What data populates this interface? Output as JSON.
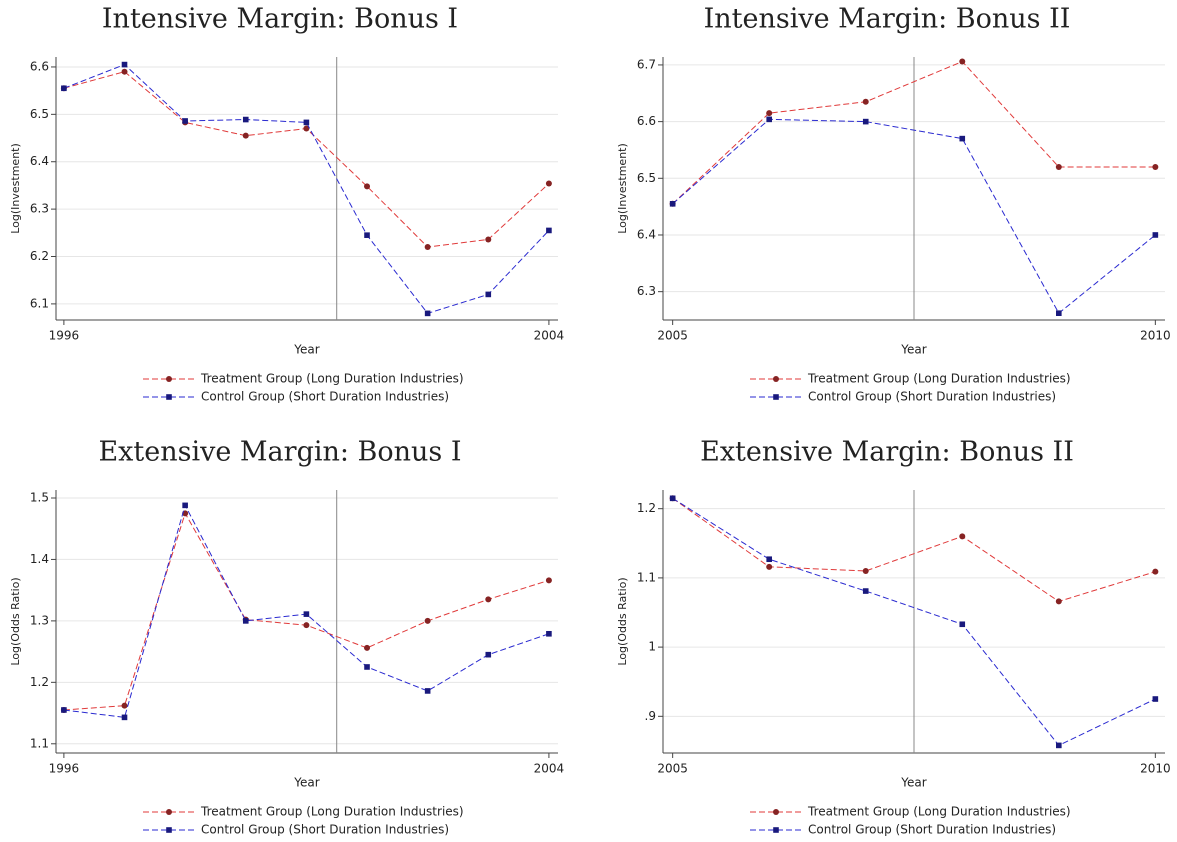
{
  "chart_data": [
    {
      "type": "line",
      "title": "Intensive Margin: Bonus I",
      "xlabel": "Year",
      "ylabel": "Log(Investment)",
      "x": [
        1996,
        1997,
        1998,
        1999,
        2000,
        2001,
        2002,
        2003,
        2004
      ],
      "xlim": [
        1995.87,
        2004.15
      ],
      "xticks": [
        1996,
        2004
      ],
      "ylim": [
        6.066,
        6.621
      ],
      "yticks": [
        6.1,
        6.2,
        6.3,
        6.4,
        6.5,
        6.6
      ],
      "grid": true,
      "vline": 2000.5,
      "series": [
        {
          "name": "Treatment Group (Long Duration Industries)",
          "color": "#e03a3a",
          "marker": "circle",
          "values": [
            6.555,
            6.59,
            6.483,
            6.455,
            6.47,
            6.348,
            6.22,
            6.236,
            6.354
          ]
        },
        {
          "name": "Control Group (Short Duration Industries)",
          "color": "#2a2ad0",
          "marker": "square",
          "values": [
            6.555,
            6.605,
            6.486,
            6.489,
            6.483,
            6.245,
            6.08,
            6.12,
            6.255
          ]
        }
      ]
    },
    {
      "type": "line",
      "title": "Intensive Margin: Bonus II",
      "xlabel": "Year",
      "ylabel": "Log(Investment)",
      "x": [
        2005,
        2006,
        2007,
        2008,
        2009,
        2010
      ],
      "xlim": [
        2004.9,
        2010.1
      ],
      "xticks": [
        2005,
        2010
      ],
      "ylim": [
        6.25,
        6.714
      ],
      "yticks": [
        6.3,
        6.4,
        6.5,
        6.6,
        6.7
      ],
      "grid": true,
      "vline": 2007.5,
      "series": [
        {
          "name": "Treatment Group (Long Duration Industries)",
          "color": "#e03a3a",
          "marker": "circle",
          "values": [
            6.455,
            6.615,
            6.635,
            6.706,
            6.52,
            6.52
          ]
        },
        {
          "name": "Control Group (Short Duration Industries)",
          "color": "#2a2ad0",
          "marker": "square",
          "values": [
            6.455,
            6.604,
            6.6,
            6.57,
            6.262,
            6.4
          ]
        }
      ]
    },
    {
      "type": "line",
      "title": "Extensive Margin: Bonus I",
      "xlabel": "Year",
      "ylabel": "Log(Odds Ratio)",
      "x": [
        1996,
        1997,
        1998,
        1999,
        2000,
        2001,
        2002,
        2003,
        2004
      ],
      "xlim": [
        1995.87,
        2004.15
      ],
      "xticks": [
        1996,
        2004
      ],
      "ylim": [
        1.085,
        1.513
      ],
      "yticks": [
        1.1,
        1.2,
        1.3,
        1.4,
        1.5
      ],
      "grid": true,
      "vline": 2000.5,
      "series": [
        {
          "name": "Treatment Group (Long Duration Industries)",
          "color": "#e03a3a",
          "marker": "circle",
          "values": [
            1.155,
            1.162,
            1.475,
            1.302,
            1.293,
            1.256,
            1.3,
            1.335,
            1.366
          ]
        },
        {
          "name": "Control Group (Short Duration Industries)",
          "color": "#2a2ad0",
          "marker": "square",
          "values": [
            1.155,
            1.143,
            1.488,
            1.3,
            1.311,
            1.225,
            1.186,
            1.245,
            1.279
          ]
        }
      ]
    },
    {
      "type": "line",
      "title": "Extensive Margin: Bonus II",
      "xlabel": "Year",
      "ylabel": "Log(Odds Ratio)",
      "x": [
        2005,
        2006,
        2007,
        2008,
        2009,
        2010
      ],
      "xlim": [
        2004.9,
        2010.1
      ],
      "xticks": [
        2005,
        2010
      ],
      "ylim": [
        0.847,
        1.227
      ],
      "yticks": [
        {
          "value": 0.9,
          "label": ".9"
        },
        1,
        1.1,
        1.2
      ],
      "grid": true,
      "vline": 2007.5,
      "series": [
        {
          "name": "Treatment Group (Long Duration Industries)",
          "color": "#e03a3a",
          "marker": "circle",
          "values": [
            1.215,
            1.116,
            1.11,
            1.16,
            1.066,
            1.109
          ]
        },
        {
          "name": "Control Group (Short Duration Industries)",
          "color": "#2a2ad0",
          "marker": "square",
          "values": [
            1.215,
            1.127,
            1.081,
            1.033,
            0.858,
            0.925
          ]
        }
      ]
    }
  ]
}
